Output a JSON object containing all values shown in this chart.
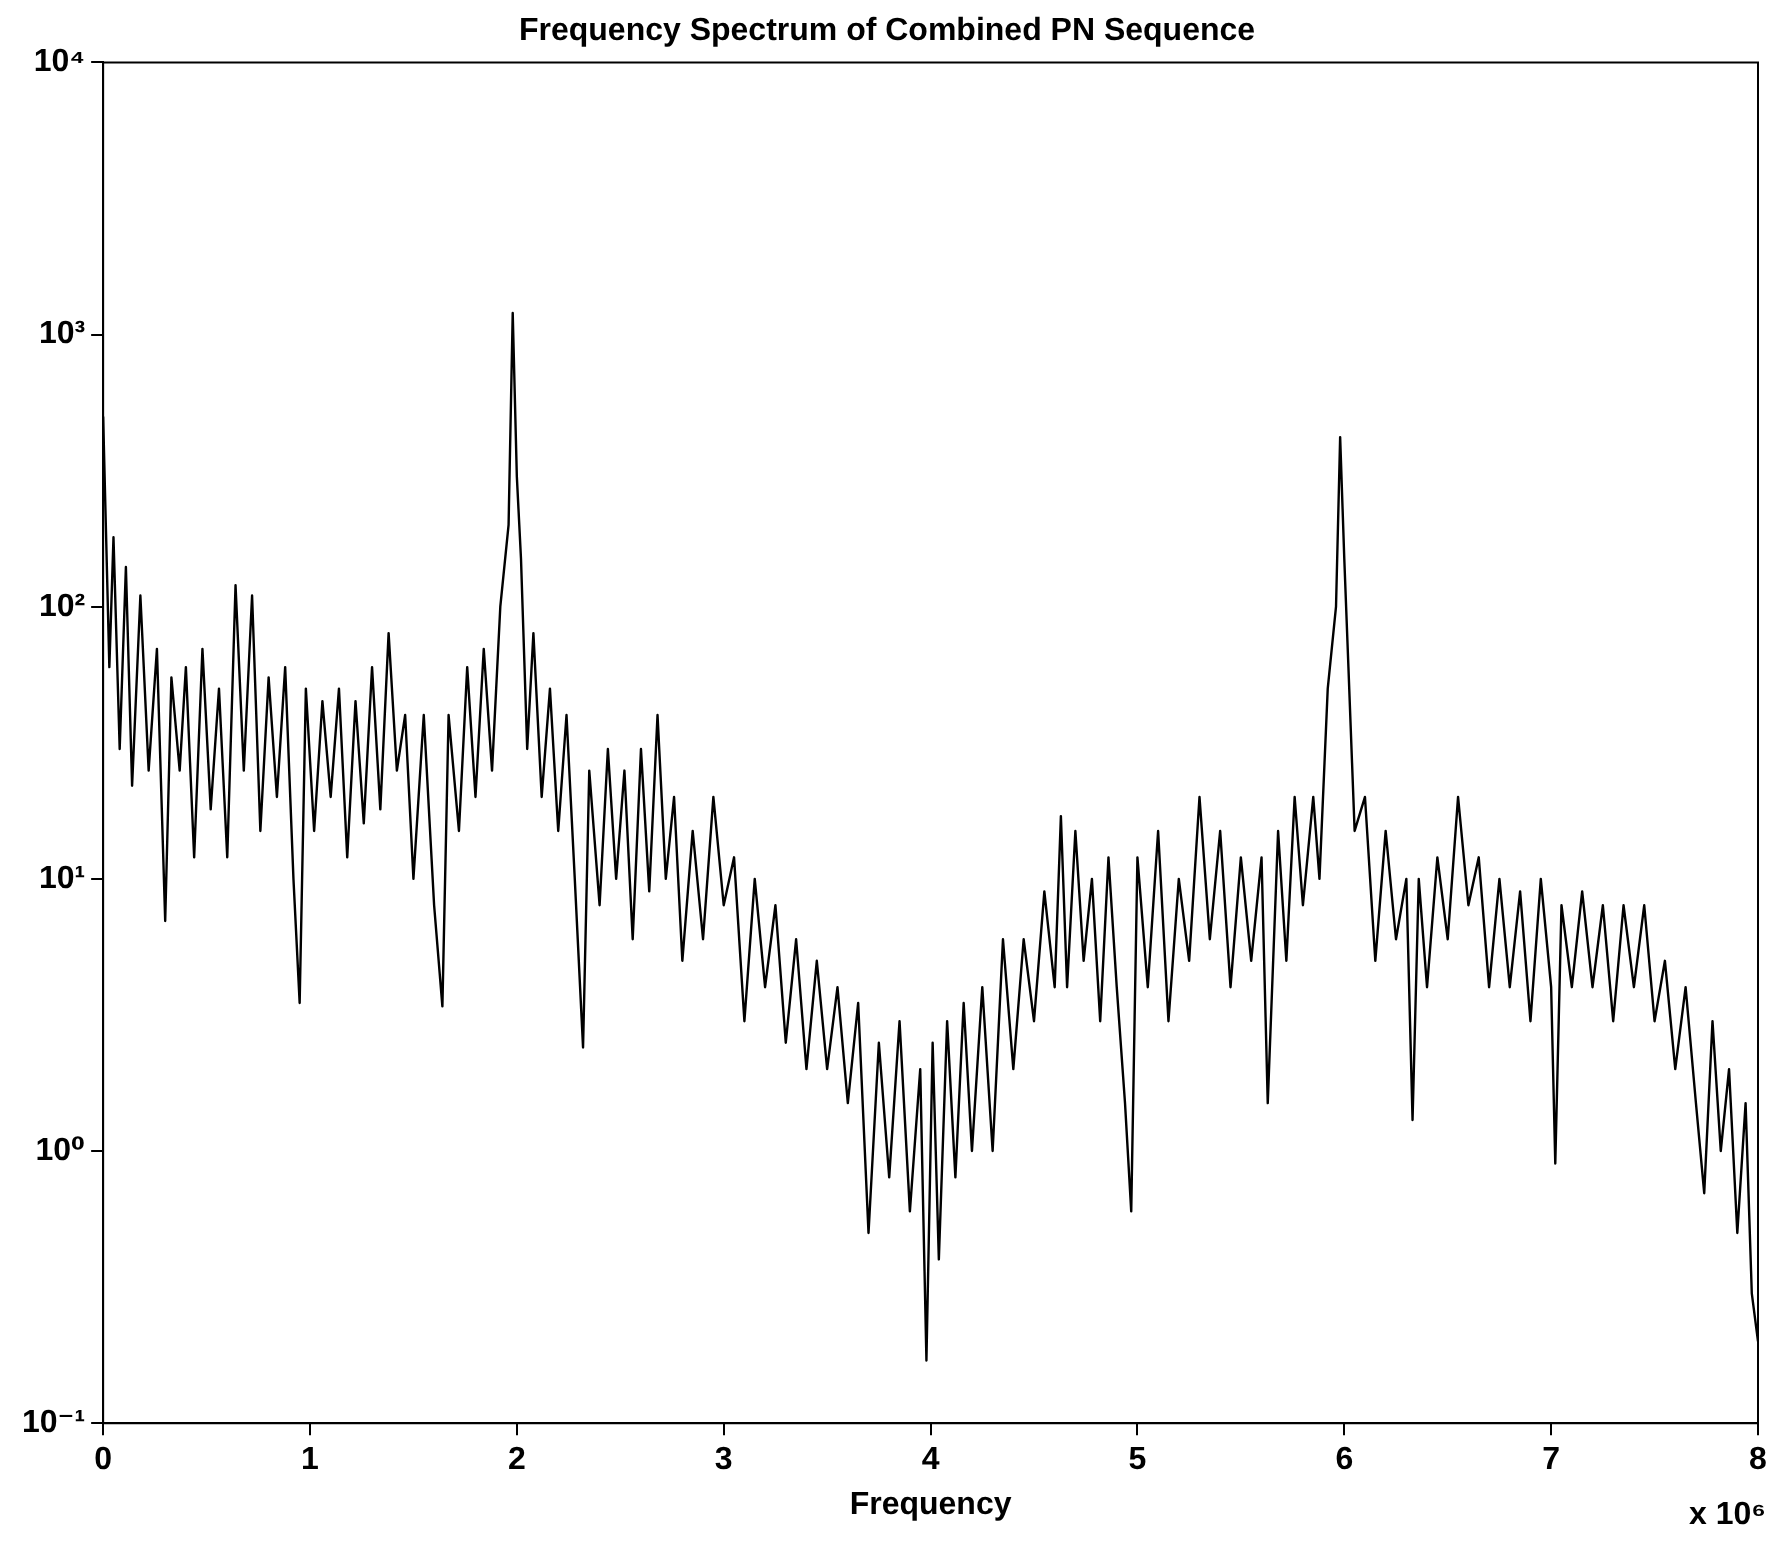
{
  "chart_data": {
    "type": "line",
    "title": "Frequency Spectrum of Combined PN Sequence",
    "xlabel": "Frequency",
    "annotations": [
      "x 10⁶"
    ],
    "x": [
      0,
      0.03,
      0.05,
      0.08,
      0.11,
      0.14,
      0.18,
      0.22,
      0.26,
      0.3,
      0.33,
      0.37,
      0.4,
      0.44,
      0.48,
      0.52,
      0.56,
      0.6,
      0.64,
      0.68,
      0.72,
      0.76,
      0.8,
      0.84,
      0.88,
      0.92,
      0.95,
      0.98,
      1.02,
      1.06,
      1.1,
      1.14,
      1.18,
      1.22,
      1.26,
      1.3,
      1.34,
      1.38,
      1.42,
      1.46,
      1.5,
      1.55,
      1.6,
      1.64,
      1.67,
      1.72,
      1.76,
      1.8,
      1.84,
      1.88,
      1.92,
      1.96,
      1.98,
      2.0,
      2.02,
      2.05,
      2.08,
      2.12,
      2.16,
      2.2,
      2.24,
      2.28,
      2.32,
      2.35,
      2.4,
      2.44,
      2.48,
      2.52,
      2.56,
      2.6,
      2.64,
      2.68,
      2.72,
      2.76,
      2.8,
      2.85,
      2.9,
      2.95,
      3.0,
      3.05,
      3.1,
      3.15,
      3.2,
      3.25,
      3.3,
      3.35,
      3.4,
      3.45,
      3.5,
      3.55,
      3.6,
      3.65,
      3.7,
      3.75,
      3.8,
      3.85,
      3.9,
      3.95,
      3.98,
      4.01,
      4.04,
      4.08,
      4.12,
      4.16,
      4.2,
      4.25,
      4.3,
      4.35,
      4.4,
      4.45,
      4.5,
      4.55,
      4.6,
      4.63,
      4.66,
      4.7,
      4.74,
      4.78,
      4.82,
      4.86,
      4.9,
      4.94,
      4.97,
      5.0,
      5.05,
      5.1,
      5.15,
      5.2,
      5.25,
      5.3,
      5.35,
      5.4,
      5.45,
      5.5,
      5.55,
      5.6,
      5.63,
      5.68,
      5.72,
      5.76,
      5.8,
      5.85,
      5.88,
      5.92,
      5.96,
      5.98,
      6.0,
      6.02,
      6.05,
      6.1,
      6.15,
      6.2,
      6.25,
      6.3,
      6.33,
      6.36,
      6.4,
      6.45,
      6.5,
      6.55,
      6.6,
      6.65,
      6.7,
      6.75,
      6.8,
      6.85,
      6.9,
      6.95,
      7.0,
      7.02,
      7.05,
      7.1,
      7.15,
      7.2,
      7.25,
      7.3,
      7.35,
      7.4,
      7.45,
      7.5,
      7.55,
      7.6,
      7.65,
      7.7,
      7.74,
      7.78,
      7.82,
      7.86,
      7.9,
      7.94,
      7.97,
      8.0
    ],
    "series": [
      {
        "color": "#000000",
        "values": [
          500,
          60,
          180,
          30,
          140,
          22,
          110,
          25,
          70,
          7,
          55,
          25,
          60,
          12,
          70,
          18,
          50,
          12,
          120,
          25,
          110,
          15,
          55,
          20,
          60,
          10,
          3.5,
          50,
          15,
          45,
          20,
          50,
          12,
          45,
          16,
          60,
          18,
          80,
          25,
          40,
          10,
          40,
          8,
          3.4,
          40,
          15,
          60,
          20,
          70,
          25,
          100,
          200,
          1200,
          300,
          150,
          30,
          80,
          20,
          50,
          15,
          40,
          10,
          2.4,
          25,
          8,
          30,
          10,
          25,
          6,
          30,
          9,
          40,
          10,
          20,
          5,
          15,
          6,
          20,
          8,
          12,
          3,
          10,
          4,
          8,
          2.5,
          6,
          2,
          5,
          2,
          4,
          1.5,
          3.5,
          0.5,
          2.5,
          0.8,
          3,
          0.6,
          2,
          0.17,
          2.5,
          0.4,
          3,
          0.8,
          3.5,
          1,
          4,
          1,
          6,
          2,
          6,
          3,
          9,
          4,
          17,
          4,
          15,
          5,
          10,
          3,
          12,
          4,
          1.5,
          0.6,
          12,
          4,
          15,
          3,
          10,
          5,
          20,
          6,
          15,
          4,
          12,
          5,
          12,
          1.5,
          15,
          5,
          20,
          8,
          20,
          10,
          50,
          100,
          420,
          150,
          60,
          15,
          20,
          5,
          15,
          6,
          10,
          1.3,
          10,
          4,
          12,
          6,
          20,
          8,
          12,
          4,
          10,
          4,
          9,
          3,
          10,
          4,
          0.9,
          8,
          4,
          9,
          4,
          8,
          3,
          8,
          4,
          8,
          3,
          5,
          2,
          4,
          1.5,
          0.7,
          3,
          1,
          2,
          0.5,
          1.5,
          0.3,
          0.2
        ]
      }
    ],
    "xlim": [
      0,
      8
    ],
    "xticks": [
      0,
      1,
      2,
      3,
      4,
      5,
      6,
      7,
      8
    ],
    "ylim": [
      0.1,
      10000
    ],
    "yticks": [
      {
        "value": 0.1,
        "label": "10⁻¹"
      },
      {
        "value": 1,
        "label": "10⁰"
      },
      {
        "value": 10,
        "label": "10¹"
      },
      {
        "value": 100,
        "label": "10²"
      },
      {
        "value": 1000,
        "label": "10³"
      },
      {
        "value": 10000,
        "label": "10⁴"
      }
    ],
    "log": true,
    "grid": false,
    "legend": false,
    "marker": "none"
  }
}
